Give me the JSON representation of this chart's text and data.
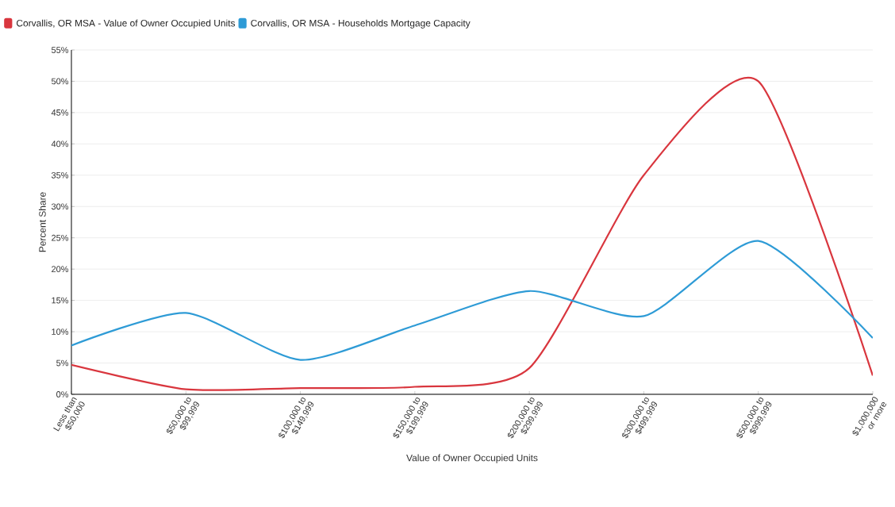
{
  "chart_data": {
    "type": "line",
    "xlabel": "Value of Owner Occupied Units",
    "ylabel": "Percent Share",
    "categories": [
      "Less than $50,000",
      "$50,000 to $99,999",
      "$100,000 to $149,999",
      "$150,000 to $199,999",
      "$200,000 to $299,999",
      "$300,000 to $499,999",
      "$500,000 to $999,999",
      "$1,000,000 or more"
    ],
    "series": [
      {
        "name": "Corvallis, OR MSA - Value of Owner Occupied Units",
        "color": "#d9363e",
        "values": [
          4.7,
          0.8,
          1.0,
          1.2,
          4.2,
          35,
          50,
          3
        ]
      },
      {
        "name": "Corvallis, OR MSA - Households Mortgage Capacity",
        "color": "#2e9bd6",
        "values": [
          7.8,
          13,
          5.5,
          11,
          16.5,
          12.5,
          24.5,
          9
        ]
      }
    ],
    "ylim": [
      0,
      55
    ],
    "yticks": [
      {
        "value": 0,
        "label": "0%"
      },
      {
        "value": 5,
        "label": "5%"
      },
      {
        "value": 10,
        "label": "10%"
      },
      {
        "value": 15,
        "label": "15%"
      },
      {
        "value": 20,
        "label": "20%"
      },
      {
        "value": 25,
        "label": "25%"
      },
      {
        "value": 30,
        "label": "30%"
      },
      {
        "value": 35,
        "label": "35%"
      },
      {
        "value": 40,
        "label": "40%"
      },
      {
        "value": 45,
        "label": "45%"
      },
      {
        "value": 50,
        "label": "50%"
      },
      {
        "value": 55,
        "label": "55%"
      }
    ],
    "grid": "y",
    "legend": "top left"
  }
}
